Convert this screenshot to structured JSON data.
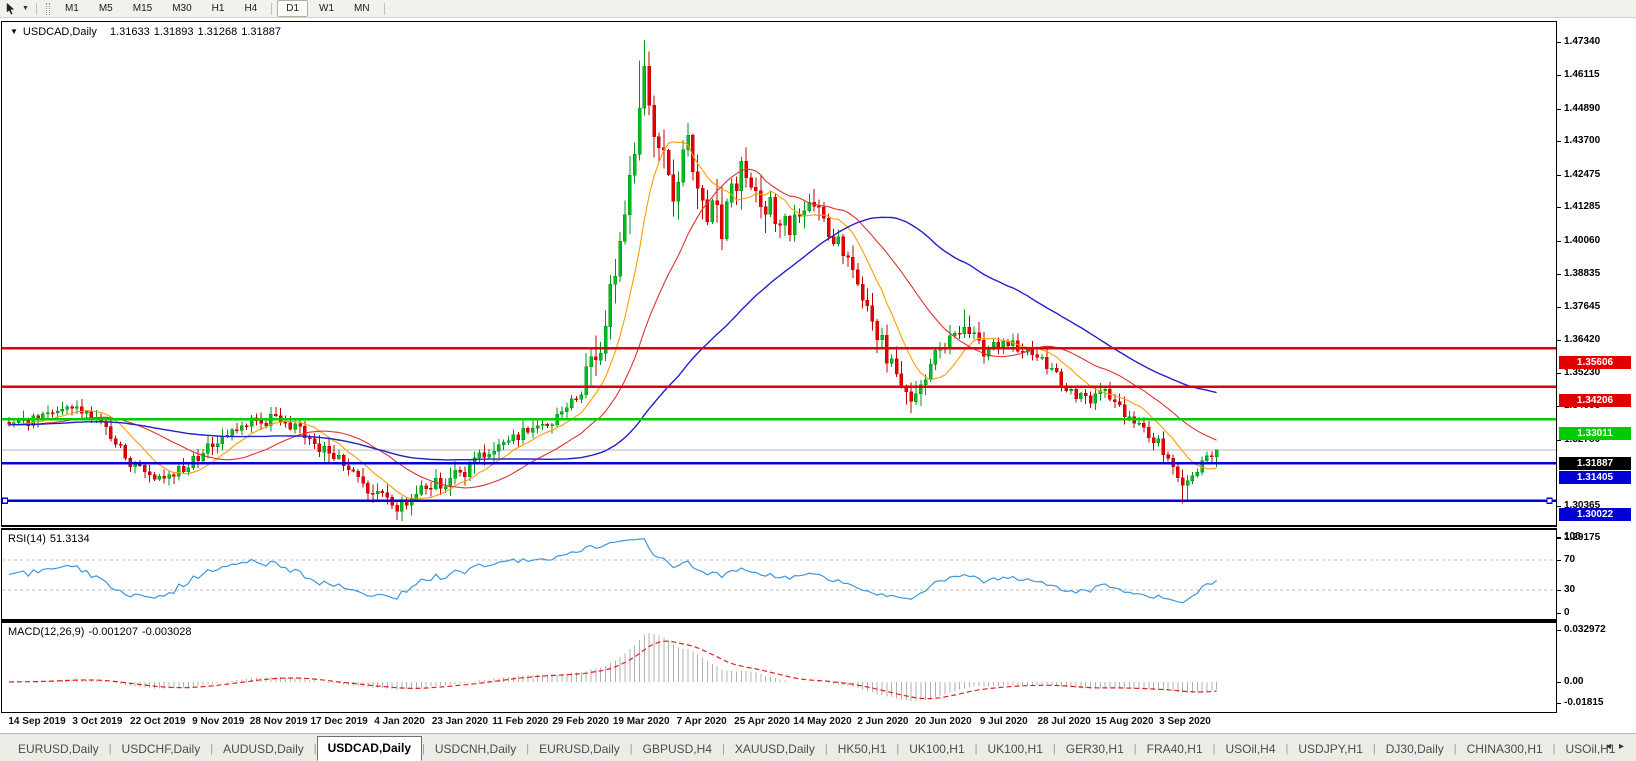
{
  "toolbar": {
    "timeframes": [
      "M1",
      "M5",
      "M15",
      "M30",
      "H1",
      "H4",
      "D1",
      "W1",
      "MN"
    ],
    "active_timeframe": "D1"
  },
  "chart": {
    "title": {
      "symbol": "USDCAD,Daily",
      "open": "1.31633",
      "high": "1.31893",
      "low": "1.31268",
      "close": "1.31887"
    },
    "y_axis_ticks": [
      "1.47340",
      "1.46115",
      "1.44890",
      "1.43700",
      "1.42475",
      "1.41285",
      "1.40060",
      "1.38835",
      "1.37645",
      "1.36420",
      "1.35230",
      "1.34005",
      "1.32780",
      "1.30365",
      "1.29175"
    ],
    "levels": [
      {
        "price": 1.35606,
        "label": "1.35606",
        "color": "#e00000",
        "kind": "resistance"
      },
      {
        "price": 1.34206,
        "label": "1.34206",
        "color": "#e00000",
        "kind": "resistance"
      },
      {
        "price": 1.33011,
        "label": "1.33011",
        "color": "#00cc00",
        "kind": "support"
      },
      {
        "price": 1.31405,
        "label": "1.31405",
        "color": "#0000d4",
        "kind": "support"
      },
      {
        "price": 1.30022,
        "label": "1.30022",
        "color": "#0000d4",
        "kind": "support",
        "selected": true
      }
    ],
    "current_price": {
      "price": 1.31887,
      "label": "1.31887",
      "line_color": "#b8b8b8",
      "label_bg": "#000000"
    },
    "colors": {
      "bull": "#00bb22",
      "bull_edge": "#009418",
      "bear": "#e60000",
      "bear_edge": "#c00000",
      "ma_fast": "#ff9d00",
      "ma_mid": "#e03232",
      "ma_slow": "#2121cc",
      "rsi_line": "#3e96e0",
      "rsi_grid": "#bbbbbb",
      "macd_hist": "#b0b0b0",
      "macd_signal": "#e02020"
    }
  },
  "chart_data": {
    "type": "candlestick",
    "symbol": "USDCAD",
    "timeframe": "Daily",
    "title": "USDCAD,Daily",
    "bars_count": 250,
    "ylim": [
      1.29175,
      1.4734
    ],
    "x_labels": [
      "14 Sep 2019",
      "3 Oct 2019",
      "22 Oct 2019",
      "9 Nov 2019",
      "28 Nov 2019",
      "17 Dec 2019",
      "4 Jan 2020",
      "23 Jan 2020",
      "11 Feb 2020",
      "29 Feb 2020",
      "19 Mar 2020",
      "7 Apr 2020",
      "25 Apr 2020",
      "14 May 2020",
      "2 Jun 2020",
      "20 Jun 2020",
      "9 Jul 2020",
      "28 Jul 2020",
      "15 Aug 2020",
      "3 Sep 2020"
    ],
    "price_path_anchors": [
      [
        0,
        1.328
      ],
      [
        6,
        1.33
      ],
      [
        12,
        1.334
      ],
      [
        18,
        1.3315
      ],
      [
        24,
        1.316
      ],
      [
        31,
        1.3075
      ],
      [
        36,
        1.3125
      ],
      [
        43,
        1.323
      ],
      [
        50,
        1.329
      ],
      [
        56,
        1.3305
      ],
      [
        62,
        1.323
      ],
      [
        68,
        1.316
      ],
      [
        74,
        1.304
      ],
      [
        81,
        1.2975
      ],
      [
        86,
        1.3045
      ],
      [
        93,
        1.3105
      ],
      [
        100,
        1.319
      ],
      [
        106,
        1.3255
      ],
      [
        112,
        1.329
      ],
      [
        118,
        1.34
      ],
      [
        122,
        1.356
      ],
      [
        126,
        1.395
      ],
      [
        129,
        1.433
      ],
      [
        131,
        1.456
      ],
      [
        134,
        1.428
      ],
      [
        137,
        1.412
      ],
      [
        140,
        1.431
      ],
      [
        143,
        1.409
      ],
      [
        147,
        1.402
      ],
      [
        151,
        1.42
      ],
      [
        156,
        1.408
      ],
      [
        161,
        1.401
      ],
      [
        165,
        1.409
      ],
      [
        168,
        1.403
      ],
      [
        172,
        1.392
      ],
      [
        177,
        1.372
      ],
      [
        181,
        1.353
      ],
      [
        186,
        1.3395
      ],
      [
        190,
        1.35
      ],
      [
        193,
        1.359
      ],
      [
        197,
        1.364
      ],
      [
        201,
        1.355
      ],
      [
        206,
        1.3585
      ],
      [
        210,
        1.3545
      ],
      [
        214,
        1.35
      ],
      [
        218,
        1.3415
      ],
      [
        222,
        1.337
      ],
      [
        226,
        1.3405
      ],
      [
        231,
        1.331
      ],
      [
        235,
        1.325
      ],
      [
        239,
        1.317
      ],
      [
        242,
        1.304
      ],
      [
        244,
        1.3075
      ],
      [
        246,
        1.314
      ],
      [
        249,
        1.31887
      ]
    ],
    "extreme_high": 1.469,
    "extreme_low": 1.2952,
    "last_bar": {
      "open": 1.31633,
      "high": 1.31893,
      "low": 1.31268,
      "close": 1.31887
    },
    "support_resistance": [
      1.35606,
      1.34206,
      1.33011,
      1.31405,
      1.30022
    ],
    "indicators": {
      "moving_averages": [
        {
          "period": 10
        },
        {
          "period": 25
        },
        {
          "period": 60
        }
      ],
      "rsi": {
        "period": 14,
        "value": 51.3134,
        "overbought": 70,
        "oversold": 30
      },
      "macd": {
        "fast": 12,
        "slow": 26,
        "signal": 9,
        "main_value": -0.001207,
        "signal_value": -0.003028
      }
    }
  },
  "rsi_panel": {
    "name": "RSI(14)",
    "value": "51.3134",
    "axis": [
      "100",
      "70",
      "30",
      "0"
    ]
  },
  "macd_panel": {
    "name": "MACD(12,26,9)",
    "main": "-0.001207",
    "signal": "-0.003028",
    "axis": [
      "0.032972",
      "0.00",
      "-0.01815"
    ]
  },
  "tabs": {
    "items": [
      {
        "label": "EURUSD,Daily",
        "active": false
      },
      {
        "label": "USDCHF,Daily",
        "active": false
      },
      {
        "label": "AUDUSD,Daily",
        "active": false
      },
      {
        "label": "USDCAD,Daily",
        "active": true
      },
      {
        "label": "USDCNH,Daily",
        "active": false
      },
      {
        "label": "EURUSD,Daily",
        "active": false
      },
      {
        "label": "GBPUSD,H4",
        "active": false
      },
      {
        "label": "XAUUSD,Daily",
        "active": false
      },
      {
        "label": "HK50,H1",
        "active": false
      },
      {
        "label": "UK100,H1",
        "active": false
      },
      {
        "label": "UK100,H1",
        "active": false
      },
      {
        "label": "GER30,H1",
        "active": false
      },
      {
        "label": "FRA40,H1",
        "active": false
      },
      {
        "label": "USOil,H4",
        "active": false
      },
      {
        "label": "USDJPY,H1",
        "active": false
      },
      {
        "label": "DJ30,Daily",
        "active": false
      },
      {
        "label": "CHINA300,H1",
        "active": false
      },
      {
        "label": "USOil,H1",
        "active": false
      }
    ],
    "scroll_left": "◂",
    "scroll_right": "▸"
  }
}
